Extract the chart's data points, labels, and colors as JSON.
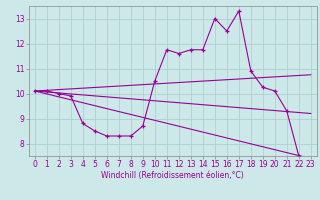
{
  "xlabel": "Windchill (Refroidissement éolien,°C)",
  "bg_color": "#cce8e8",
  "line_color": "#990099",
  "grid_color": "#aacccc",
  "spine_color": "#888888",
  "xlim": [
    -0.5,
    23.5
  ],
  "ylim": [
    7.5,
    13.5
  ],
  "yticks": [
    8,
    9,
    10,
    11,
    12,
    13
  ],
  "xticks": [
    0,
    1,
    2,
    3,
    4,
    5,
    6,
    7,
    8,
    9,
    10,
    11,
    12,
    13,
    14,
    15,
    16,
    17,
    18,
    19,
    20,
    21,
    22,
    23
  ],
  "series1_x": [
    0,
    1,
    2,
    3,
    4,
    5,
    6,
    7,
    8,
    9,
    10,
    11,
    12,
    13,
    14,
    15,
    16,
    17,
    18,
    19,
    20,
    21,
    22,
    23
  ],
  "series1_y": [
    10.1,
    10.1,
    10.0,
    9.9,
    8.8,
    8.5,
    8.3,
    8.3,
    8.3,
    8.7,
    10.5,
    11.75,
    11.6,
    11.75,
    11.75,
    13.0,
    12.5,
    13.3,
    10.9,
    10.25,
    10.1,
    9.3,
    7.5,
    7.4
  ],
  "line1_x": [
    0,
    23
  ],
  "line1_y": [
    10.1,
    10.75
  ],
  "line2_x": [
    0,
    23
  ],
  "line2_y": [
    10.1,
    7.4
  ],
  "line3_x": [
    0,
    23
  ],
  "line3_y": [
    10.1,
    9.2
  ],
  "tick_fontsize": 5.5,
  "xlabel_fontsize": 5.5,
  "linewidth": 0.8,
  "markersize": 3.5,
  "markeredgewidth": 0.9
}
